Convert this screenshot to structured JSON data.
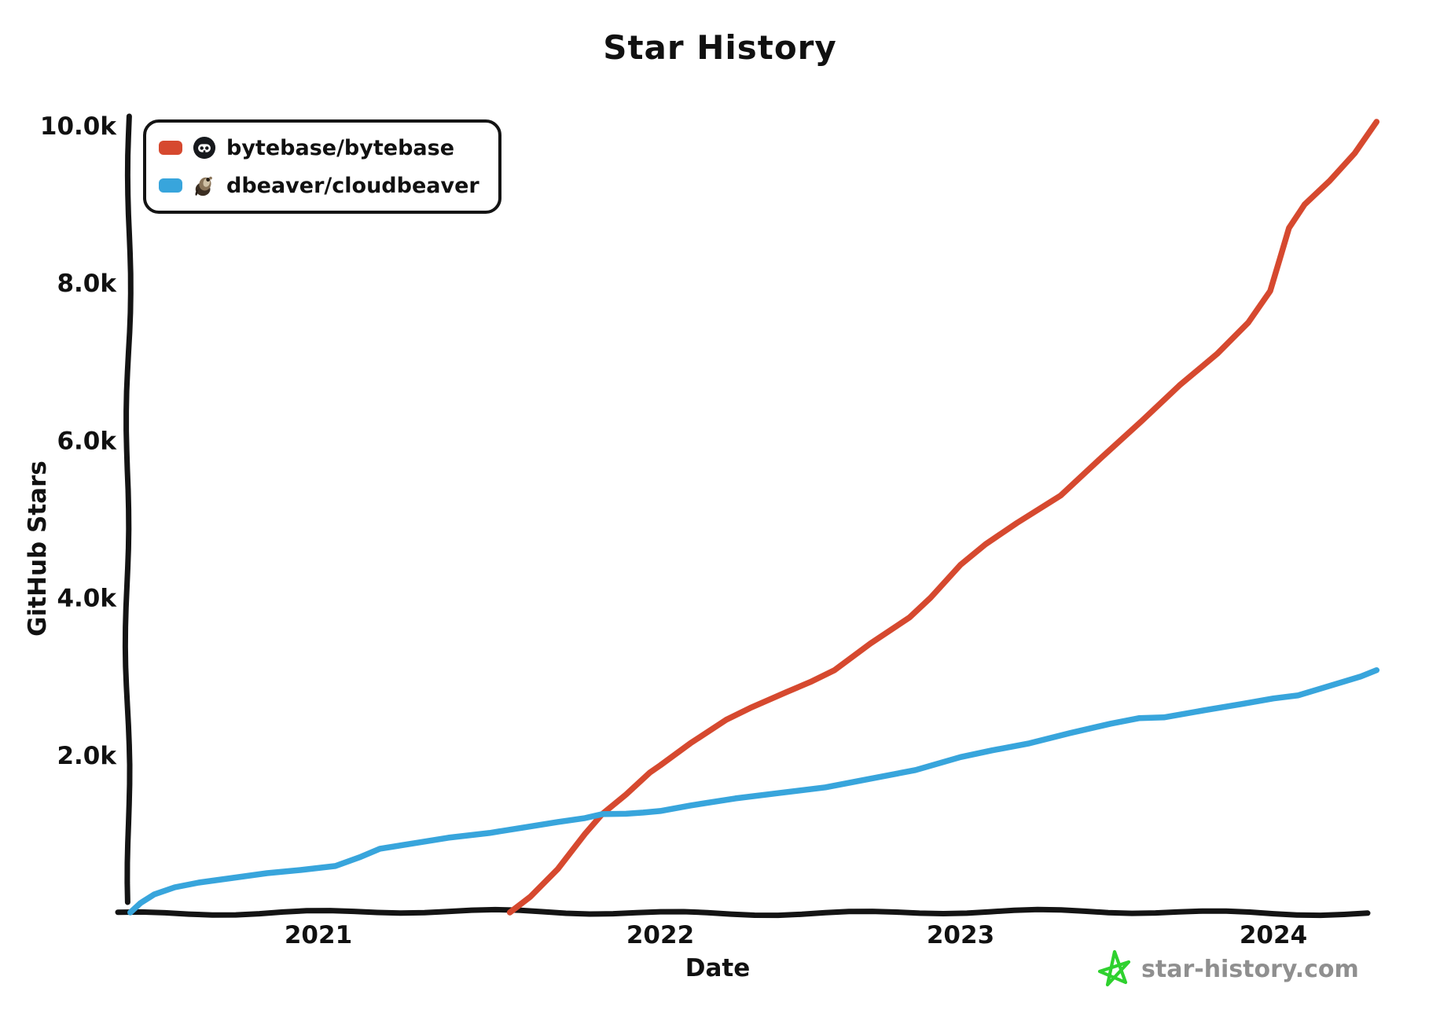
{
  "title": "Star History",
  "xlabel": "Date",
  "ylabel": "GitHub Stars",
  "legend": {
    "items": [
      {
        "label": "bytebase/bytebase",
        "color": "#d6492f",
        "icon": "bytebase-avatar"
      },
      {
        "label": "dbeaver/cloudbeaver",
        "color": "#38a5dc",
        "icon": "cloudbeaver-avatar"
      }
    ]
  },
  "attribution": {
    "text": "star-history.com",
    "icon": "star-icon",
    "star_color": "#2fd12f",
    "text_color": "#8f8f8f"
  },
  "colors": {
    "axis": "#141414",
    "background": "#ffffff"
  },
  "chart_data": {
    "type": "line",
    "title": "Star History",
    "xlabel": "Date",
    "ylabel": "GitHub Stars",
    "grid": false,
    "legend_position": "top-left",
    "xlim": [
      2020.44,
      2024.42
    ],
    "ylim": [
      0,
      10000
    ],
    "x_ticks": [
      {
        "label": "2021",
        "value": 2021
      },
      {
        "label": "2022",
        "value": 2022
      },
      {
        "label": "2023",
        "value": 2023
      },
      {
        "label": "2024",
        "value": 2024
      }
    ],
    "y_ticks": [
      {
        "label": "2.0k",
        "value": 2000
      },
      {
        "label": "4.0k",
        "value": 4000
      },
      {
        "label": "6.0k",
        "value": 6000
      },
      {
        "label": "8.0k",
        "value": 8000
      },
      {
        "label": "10.0k",
        "value": 10000
      }
    ],
    "series": [
      {
        "name": "bytebase/bytebase",
        "color": "#d6492f",
        "points": [
          [
            2021.56,
            0
          ],
          [
            2021.62,
            200
          ],
          [
            2021.7,
            550
          ],
          [
            2021.78,
            1000
          ],
          [
            2021.83,
            1250
          ],
          [
            2021.9,
            1500
          ],
          [
            2021.97,
            1780
          ],
          [
            2022.0,
            1870
          ],
          [
            2022.1,
            2150
          ],
          [
            2022.22,
            2450
          ],
          [
            2022.3,
            2600
          ],
          [
            2022.42,
            2800
          ],
          [
            2022.5,
            2930
          ],
          [
            2022.58,
            3080
          ],
          [
            2022.7,
            3420
          ],
          [
            2022.83,
            3750
          ],
          [
            2022.9,
            4000
          ],
          [
            2023.0,
            4420
          ],
          [
            2023.08,
            4680
          ],
          [
            2023.18,
            4950
          ],
          [
            2023.32,
            5300
          ],
          [
            2023.45,
            5780
          ],
          [
            2023.58,
            6250
          ],
          [
            2023.7,
            6700
          ],
          [
            2023.82,
            7100
          ],
          [
            2023.92,
            7500
          ],
          [
            2023.99,
            7900
          ],
          [
            2024.02,
            8300
          ],
          [
            2024.05,
            8700
          ],
          [
            2024.1,
            9000
          ],
          [
            2024.18,
            9300
          ],
          [
            2024.26,
            9650
          ],
          [
            2024.33,
            10050
          ]
        ]
      },
      {
        "name": "dbeaver/cloudbeaver",
        "color": "#38a5dc",
        "points": [
          [
            2020.45,
            0
          ],
          [
            2020.48,
            120
          ],
          [
            2020.52,
            230
          ],
          [
            2020.58,
            320
          ],
          [
            2020.65,
            380
          ],
          [
            2020.75,
            440
          ],
          [
            2020.85,
            500
          ],
          [
            2020.95,
            540
          ],
          [
            2021.05,
            590
          ],
          [
            2021.12,
            700
          ],
          [
            2021.18,
            810
          ],
          [
            2021.28,
            880
          ],
          [
            2021.38,
            950
          ],
          [
            2021.5,
            1010
          ],
          [
            2021.6,
            1080
          ],
          [
            2021.7,
            1150
          ],
          [
            2021.78,
            1200
          ],
          [
            2021.83,
            1250
          ],
          [
            2021.9,
            1255
          ],
          [
            2021.95,
            1270
          ],
          [
            2022.0,
            1290
          ],
          [
            2022.1,
            1360
          ],
          [
            2022.25,
            1450
          ],
          [
            2022.4,
            1520
          ],
          [
            2022.55,
            1590
          ],
          [
            2022.7,
            1700
          ],
          [
            2022.85,
            1810
          ],
          [
            2023.0,
            1975
          ],
          [
            2023.1,
            2060
          ],
          [
            2023.22,
            2150
          ],
          [
            2023.35,
            2280
          ],
          [
            2023.48,
            2400
          ],
          [
            2023.57,
            2470
          ],
          [
            2023.65,
            2480
          ],
          [
            2023.78,
            2570
          ],
          [
            2023.9,
            2650
          ],
          [
            2024.0,
            2720
          ],
          [
            2024.08,
            2760
          ],
          [
            2024.18,
            2880
          ],
          [
            2024.28,
            3000
          ],
          [
            2024.33,
            3080
          ]
        ]
      }
    ]
  }
}
